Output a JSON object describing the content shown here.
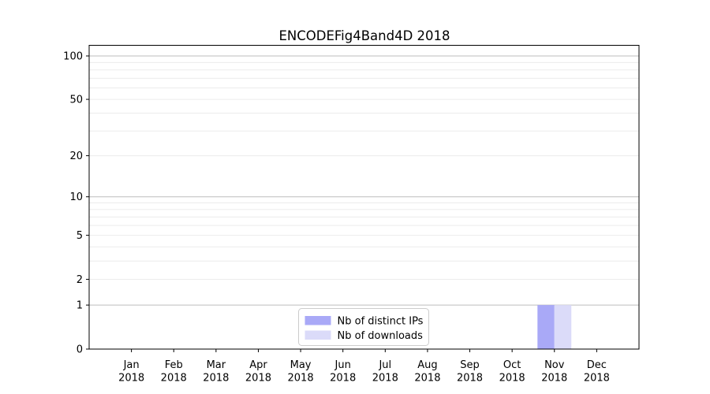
{
  "chart_data": {
    "type": "bar",
    "title": "ENCODEFig4Band4D 2018",
    "x_tick_labels": [
      [
        "Jan",
        "2018"
      ],
      [
        "Feb",
        "2018"
      ],
      [
        "Mar",
        "2018"
      ],
      [
        "Apr",
        "2018"
      ],
      [
        "May",
        "2018"
      ],
      [
        "Jun",
        "2018"
      ],
      [
        "Jul",
        "2018"
      ],
      [
        "Aug",
        "2018"
      ],
      [
        "Sep",
        "2018"
      ],
      [
        "Oct",
        "2018"
      ],
      [
        "Nov",
        "2018"
      ],
      [
        "Dec",
        "2018"
      ]
    ],
    "series": [
      {
        "name": "Nb of distinct IPs",
        "color": "#a9a9f7",
        "values": [
          0,
          0,
          0,
          0,
          0,
          0,
          0,
          0,
          0,
          0,
          1,
          0
        ]
      },
      {
        "name": "Nb of downloads",
        "color": "#dbdbf9",
        "values": [
          0,
          0,
          0,
          0,
          0,
          0,
          0,
          0,
          0,
          0,
          1,
          0
        ]
      }
    ],
    "yscale": "log1p",
    "ylim": [
      0,
      118
    ],
    "y_tick_values": [
      0,
      1,
      2,
      5,
      10,
      20,
      50,
      100
    ],
    "y_major_grid": [
      1,
      10,
      100
    ],
    "y_minor_grid": [
      2,
      3,
      4,
      5,
      6,
      7,
      8,
      9,
      20,
      30,
      40,
      50,
      60,
      70,
      80,
      90
    ],
    "grid": "horizontal",
    "legend_position": "bottom-center",
    "colors": {
      "major_grid": "#bdbdbd",
      "minor_grid": "#ececec",
      "spine": "#000000",
      "legend_border": "#cccccc",
      "legend_background": "#ffffff"
    }
  }
}
